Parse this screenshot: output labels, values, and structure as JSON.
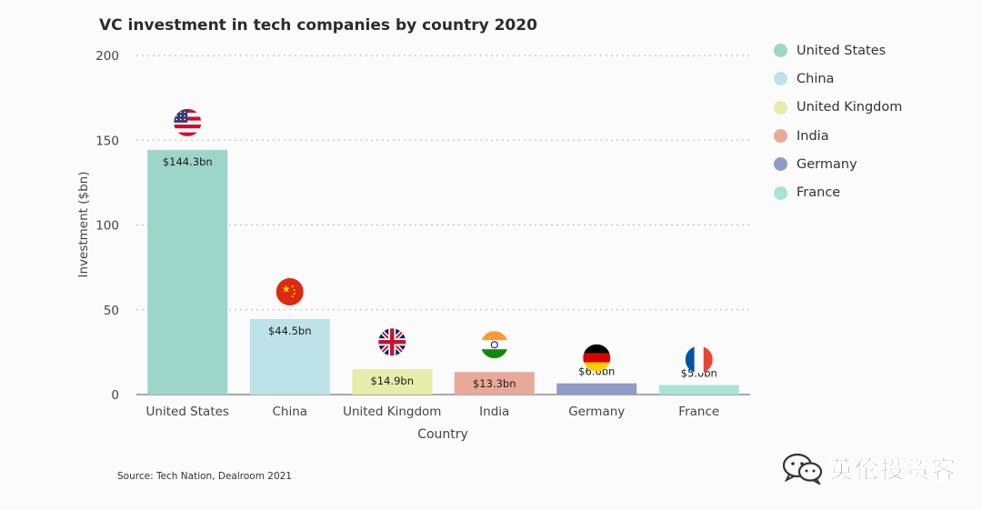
{
  "chart_data": {
    "type": "bar",
    "title": "VC investment in tech companies by country 2020",
    "xlabel": "Country",
    "ylabel": "Investment ($bn)",
    "ylim": [
      0,
      200
    ],
    "yticks": [
      0,
      50,
      100,
      150,
      200
    ],
    "grid": true,
    "legend_placement": "right",
    "categories": [
      "United States",
      "China",
      "United Kingdom",
      "India",
      "Germany",
      "France"
    ],
    "values": [
      144.3,
      44.5,
      14.9,
      13.3,
      6.6,
      5.6
    ],
    "data_labels": [
      "$144.3bn",
      "$44.5bn",
      "$14.9bn",
      "$13.3bn",
      "$6.6bn",
      "$5.6bn"
    ],
    "colors": [
      "#9ed5c9",
      "#bde2ea",
      "#e8ecab",
      "#e9a99a",
      "#8f9cc8",
      "#a9e3d6"
    ],
    "flag_icons": [
      "us-flag-icon",
      "china-flag-icon",
      "uk-flag-icon",
      "india-flag-icon",
      "germany-flag-icon",
      "france-flag-icon"
    ]
  },
  "legend": [
    "United States",
    "China",
    "United Kingdom",
    "India",
    "Germany",
    "France"
  ],
  "source": "Source: Tech Nation, Dealroom 2021",
  "watermark": "英伦投资客"
}
